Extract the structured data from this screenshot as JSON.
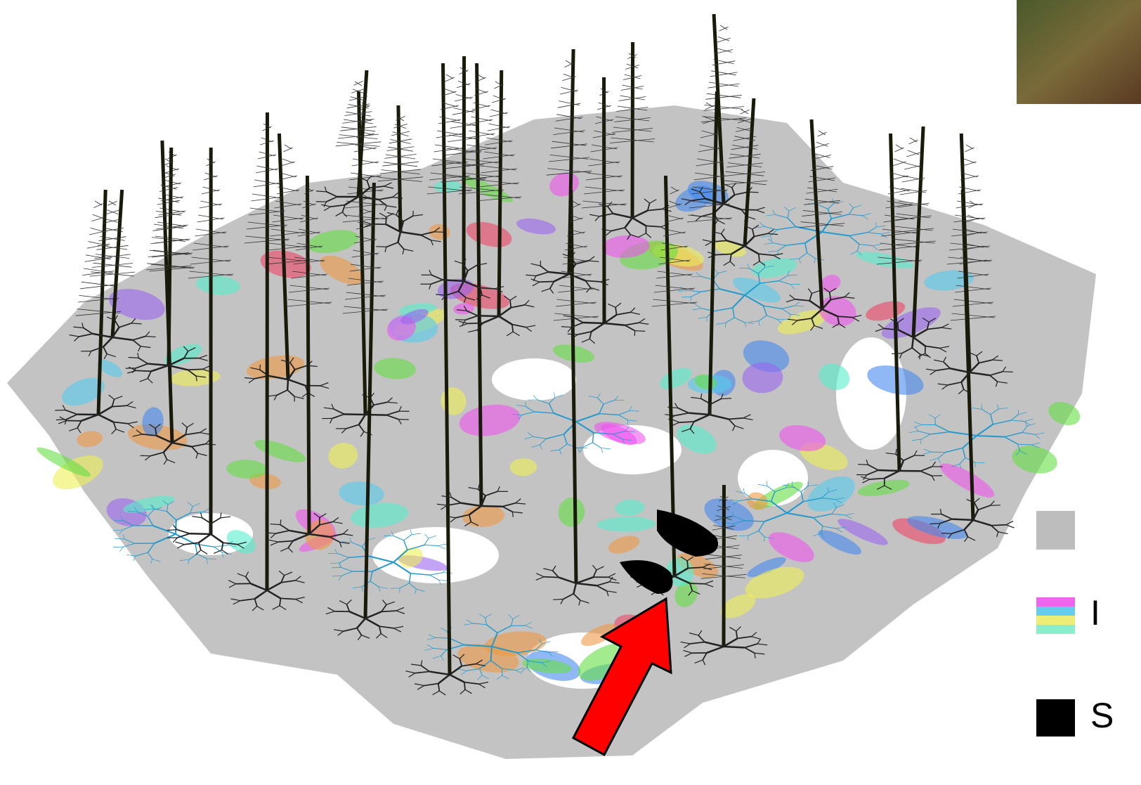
{
  "legend": {
    "items": [
      {
        "label": "I"
      },
      {
        "label": "S"
      }
    ]
  }
}
